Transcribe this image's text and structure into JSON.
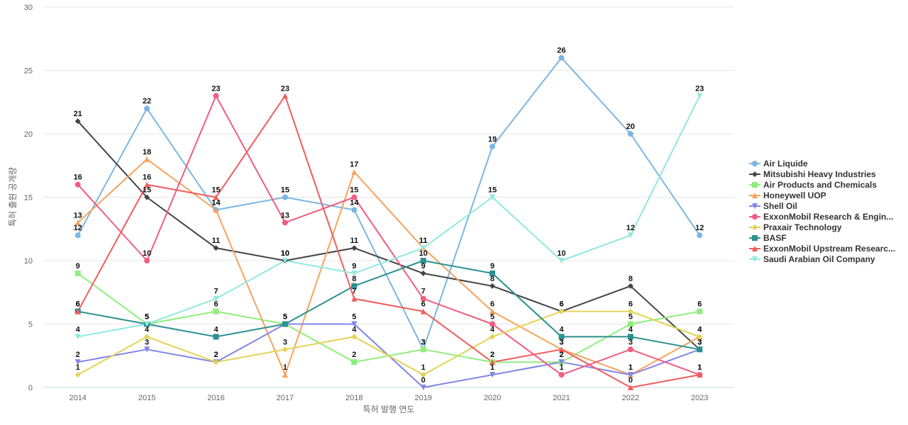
{
  "chart_data": {
    "type": "line",
    "xlabel": "특허 발행 연도",
    "ylabel": "특허 출원 공개량",
    "ylim": [
      0,
      30
    ],
    "yticks": [
      0,
      5,
      10,
      15,
      20,
      25,
      30
    ],
    "grid": true,
    "legend_position": "right",
    "categories": [
      "2014",
      "2015",
      "2016",
      "2017",
      "2018",
      "2019",
      "2020",
      "2021",
      "2022",
      "2023"
    ],
    "series": [
      {
        "name": "Air Liquide",
        "color": "#7cb5e4",
        "marker": "circle",
        "values": [
          12,
          22,
          14,
          15,
          14,
          3,
          19,
          26,
          20,
          12
        ]
      },
      {
        "name": "Mitsubishi Heavy Industries",
        "color": "#434348",
        "marker": "diamond",
        "values": [
          21,
          15,
          11,
          10,
          11,
          9,
          8,
          6,
          8,
          3
        ]
      },
      {
        "name": "Air Products and Chemicals",
        "color": "#90ed7d",
        "marker": "square",
        "values": [
          9,
          5,
          6,
          5,
          2,
          3,
          2,
          2,
          5,
          6
        ]
      },
      {
        "name": "Honeywell UOP",
        "color": "#f7a35c",
        "marker": "triangle",
        "values": [
          13,
          18,
          14,
          1,
          17,
          11,
          6,
          3,
          1,
          4
        ]
      },
      {
        "name": "Shell Oil",
        "color": "#8085e9",
        "marker": "triangle-down",
        "values": [
          2,
          3,
          2,
          5,
          5,
          0,
          1,
          2,
          1,
          3
        ]
      },
      {
        "name": "ExxonMobil Research & Engin...",
        "color": "#f15c80",
        "marker": "circle",
        "values": [
          16,
          10,
          23,
          13,
          15,
          7,
          5,
          1,
          3,
          1
        ]
      },
      {
        "name": "Praxair Technology",
        "color": "#e4d354",
        "marker": "diamond",
        "values": [
          1,
          4,
          2,
          3,
          4,
          1,
          4,
          6,
          6,
          4
        ]
      },
      {
        "name": "BASF",
        "color": "#2b908f",
        "marker": "square",
        "values": [
          6,
          5,
          4,
          5,
          8,
          10,
          9,
          4,
          4,
          3
        ]
      },
      {
        "name": "ExxonMobil Upstream Researc...",
        "color": "#f45b5b",
        "marker": "triangle",
        "values": [
          6,
          16,
          15,
          23,
          7,
          6,
          2,
          3,
          0,
          1
        ]
      },
      {
        "name": "Saudi Arabian Oil Company",
        "color": "#91e8e1",
        "marker": "triangle-down",
        "values": [
          4,
          5,
          7,
          10,
          9,
          11,
          15,
          10,
          12,
          23
        ]
      }
    ]
  }
}
